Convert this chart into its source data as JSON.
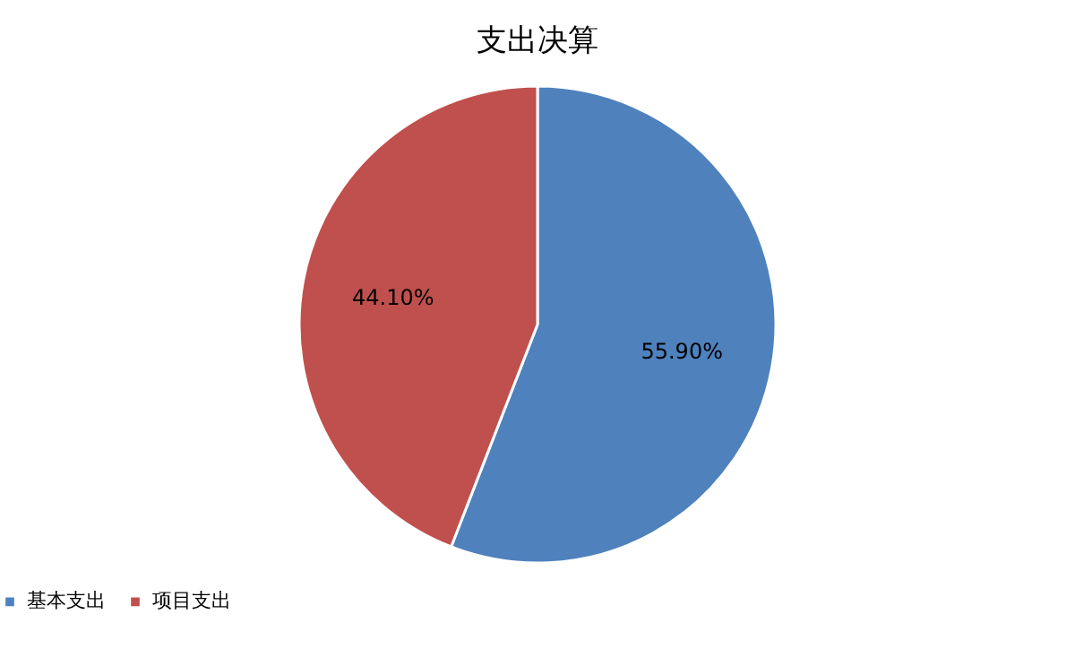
{
  "chart_data": {
    "type": "pie",
    "title": "支出决算",
    "categories": [
      "基本支出",
      "项目支出"
    ],
    "values": [
      55.9,
      44.1
    ],
    "colors": [
      "#4f81bd",
      "#c0504d"
    ],
    "value_labels": [
      "55.90%",
      "44.10%"
    ],
    "legend": "bottom"
  }
}
